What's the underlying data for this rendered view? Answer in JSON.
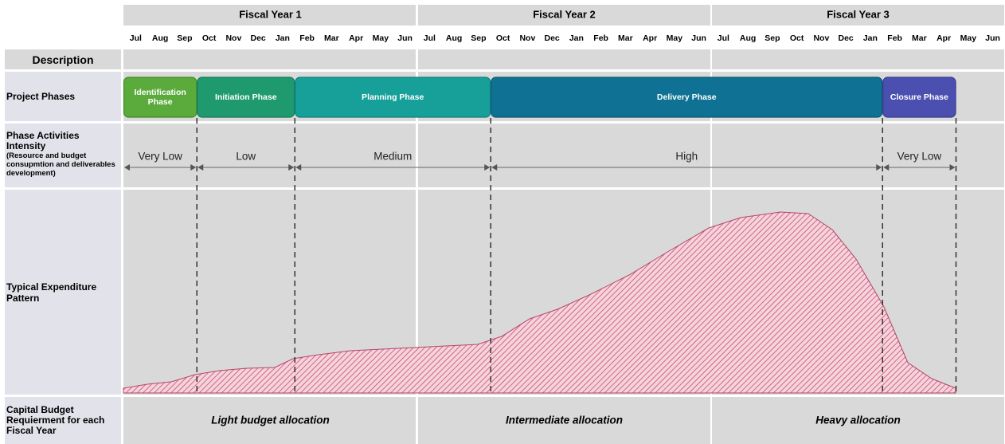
{
  "header": {
    "fiscal_years": [
      "Fiscal Year 1",
      "Fiscal Year 2",
      "Fiscal Year 3"
    ],
    "months": [
      "Jul",
      "Aug",
      "Sep",
      "Oct",
      "Nov",
      "Dec",
      "Jan",
      "Feb",
      "Mar",
      "Apr",
      "May",
      "Jun",
      "Jul",
      "Aug",
      "Sep",
      "Oct",
      "Nov",
      "Dec",
      "Jan",
      "Feb",
      "Mar",
      "Apr",
      "May",
      "Jun",
      "Jul",
      "Aug",
      "Sep",
      "Oct",
      "Nov",
      "Dec",
      "Jan",
      "Feb",
      "Mar",
      "Apr",
      "May",
      "Jun"
    ]
  },
  "rows": {
    "description": "Description",
    "phases": "Project Phases",
    "intensity": "Phase Activities Intensity",
    "intensity_note": "(Resource and budget consupmtion and deliverables development)",
    "expenditure": "Typical Expenditure Pattern",
    "capital": "Capital Budget Requierment for each Fiscal Year"
  },
  "phases": [
    "Identification Phase",
    "Initiation Phase",
    "Planning Phase",
    "Delivery Phase",
    "Closure Phase"
  ],
  "intensity": [
    "Very Low",
    "Low",
    "Medium",
    "High",
    "Very Low"
  ],
  "allocations": [
    "Light budget allocation",
    "Intermediate allocation",
    "Heavy allocation"
  ]
}
